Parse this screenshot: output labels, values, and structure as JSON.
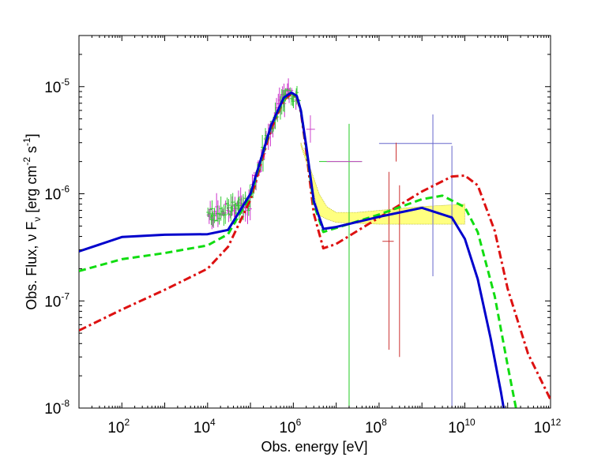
{
  "chart_data": {
    "type": "line",
    "xscale": "log",
    "yscale": "log",
    "xlabel": "Obs. energy [eV]",
    "ylabel_parts": [
      "Obs. Flux, ",
      "ν",
      " F",
      "ν",
      " [erg cm",
      "-2",
      " s",
      "-1",
      "]"
    ],
    "xlim": [
      10,
      1000000000000.0
    ],
    "ylim": [
      1e-08,
      3e-05
    ],
    "x_ticks": [
      {
        "value": 100,
        "base": "10",
        "exp": "2"
      },
      {
        "value": 10000,
        "base": "10",
        "exp": "4"
      },
      {
        "value": 1000000,
        "base": "10",
        "exp": "6"
      },
      {
        "value": 100000000,
        "base": "10",
        "exp": "8"
      },
      {
        "value": 10000000000,
        "base": "10",
        "exp": "10"
      },
      {
        "value": 1000000000000,
        "base": "10",
        "exp": "12"
      }
    ],
    "y_ticks": [
      {
        "value": 1e-08,
        "base": "10",
        "exp": "-8"
      },
      {
        "value": 1e-07,
        "base": "10",
        "exp": "-7"
      },
      {
        "value": 1e-06,
        "base": "10",
        "exp": "-6"
      },
      {
        "value": 1e-05,
        "base": "10",
        "exp": "-5"
      }
    ],
    "series": [
      {
        "name": "model-blue-solid",
        "color": "#0000cc",
        "dash": "solid",
        "x": [
          10,
          100,
          1000,
          10000,
          30000,
          100000,
          300000,
          600000,
          900000,
          1200000,
          1500000,
          2000000,
          3000000,
          5000000,
          10000000,
          100000000,
          1000000000,
          5000000000,
          10000000000,
          20000000000,
          40000000000,
          70000000000,
          100000000000
        ],
        "y": [
          2.9e-07,
          3.95e-07,
          4.15e-07,
          4.2e-07,
          4.6e-07,
          1e-06,
          4.3e-06,
          7.9e-06,
          8.8e-06,
          8.2e-06,
          6e-06,
          2.8e-06,
          8.5e-07,
          4.7e-07,
          4.9e-07,
          6.1e-07,
          7.4e-07,
          6e-07,
          3.8e-07,
          1.6e-07,
          4.5e-08,
          1.4e-08,
          6e-09
        ]
      },
      {
        "name": "model-green-dashed",
        "color": "#11dd11",
        "dash": "dashed",
        "x": [
          10,
          100,
          1000,
          10000,
          30000,
          100000,
          300000,
          600000,
          900000,
          1200000,
          1500000,
          2000000,
          3000000,
          5000000,
          10000000,
          100000000,
          1000000000,
          3000000000,
          10000000000,
          20000000000,
          50000000000,
          100000000000,
          200000000000
        ],
        "y": [
          1.9e-07,
          2.45e-07,
          2.8e-07,
          3.3e-07,
          4.2e-07,
          9.6e-07,
          4.2e-06,
          7.7e-06,
          8.7e-06,
          8.1e-06,
          6e-06,
          2.7e-06,
          8e-07,
          4.4e-07,
          4.8e-07,
          6.4e-07,
          8.9e-07,
          9.6e-07,
          7.5e-07,
          4.4e-07,
          1.1e-07,
          2.5e-08,
          6e-09
        ]
      },
      {
        "name": "model-red-dashdot",
        "color": "#dd1111",
        "dash": "dashdot",
        "x": [
          10,
          100,
          1000,
          10000,
          30000,
          100000,
          300000,
          600000,
          900000,
          1200000,
          1500000,
          2000000,
          3000000,
          5000000,
          10000000,
          100000000,
          1000000000,
          5000000000,
          10000000000,
          20000000000,
          50000000000,
          100000000000,
          300000000000,
          1000000000000
        ],
        "y": [
          5.3e-08,
          8.3e-08,
          1.27e-07,
          2e-07,
          3.2e-07,
          8.8e-07,
          4e-06,
          7.5e-06,
          8.6e-06,
          8e-06,
          5.8e-06,
          2.5e-06,
          6.5e-07,
          3.1e-07,
          3.4e-07,
          6e-07,
          1.05e-06,
          1.45e-06,
          1.48e-06,
          1.2e-06,
          4.5e-07,
          1.3e-07,
          3.2e-08,
          1.2e-08
        ]
      }
    ],
    "band": {
      "name": "uncertainty-band",
      "fill": "#ffff80",
      "x_upper": [
        1500000,
        2000000,
        3000000,
        4000000,
        6000000,
        10000000,
        30000000,
        100000000,
        1000000000,
        10000000000
      ],
      "y_upper": [
        3e-06,
        2.2e-06,
        1.4e-06,
        1e-06,
        7.6e-07,
        6.7e-07,
        6.7e-07,
        7e-07,
        7.6e-07,
        8e-07
      ],
      "x_lower": [
        10000000000,
        1000000000,
        100000000,
        30000000,
        10000000,
        6000000,
        4000000,
        3000000,
        2000000,
        1500000
      ],
      "y_lower": [
        5.2e-07,
        5.2e-07,
        5.2e-07,
        5.3e-07,
        5.4e-07,
        5.8e-07,
        6.3e-07,
        1e-06,
        2e-06,
        2.8e-06
      ]
    },
    "data_points": [
      {
        "name": "green-point",
        "color": "#22cc22",
        "x": 20000000,
        "y": 2e-06,
        "xerr": [
          4000000,
          40000000
        ],
        "yerr": [
          1e-08,
          4.5e-06
        ]
      },
      {
        "name": "magenta-point",
        "color": "#cc44cc",
        "x": 20000000,
        "y": 2e-06,
        "xerr": [
          6000000,
          40000000
        ],
        "yerr": [
          2e-06,
          2e-06
        ]
      },
      {
        "name": "magenta-point",
        "color": "#cc44cc",
        "x": 2500000,
        "y": 4e-06,
        "xerr": [
          2000000,
          3200000
        ],
        "yerr": [
          3e-06,
          5.4e-06
        ]
      },
      {
        "name": "blue-point",
        "color": "#6666cc",
        "x": 200000000,
        "y": 2.95e-06,
        "xerr": [
          100000000,
          5000000000
        ],
        "yerr": [
          2.95e-06,
          2.95e-06
        ]
      },
      {
        "name": "red-point",
        "color": "#cc3333",
        "x": 250000000,
        "y": 2.4e-06,
        "xerr": [
          250000000,
          250000000
        ],
        "yerr": [
          2e-06,
          3e-06
        ]
      },
      {
        "name": "red-point",
        "color": "#cc3333",
        "x": 170000000,
        "y": 3.6e-07,
        "xerr": [
          120000000,
          220000000
        ],
        "yerr": [
          3.5e-08,
          1.6e-06
        ]
      },
      {
        "name": "red-point",
        "color": "#cc3333",
        "x": 300000000,
        "y": 2.7e-07,
        "xerr": [
          300000000,
          300000000
        ],
        "yerr": [
          3e-08,
          1.2e-06
        ]
      },
      {
        "name": "blue-point",
        "color": "#6666cc",
        "x": 1800000000,
        "y": 6e-07,
        "xerr": [
          1800000000,
          1800000000
        ],
        "yerr": [
          1.7e-07,
          5.5e-06
        ]
      },
      {
        "name": "blue-point",
        "color": "#6666cc",
        "x": 5000000000,
        "y": 6e-07,
        "xerr": [
          5000000000,
          5000000000
        ],
        "yerr": [
          1e-08,
          2.8e-06
        ]
      }
    ],
    "spectrum_clusters": [
      {
        "name": "magenta-spectrum",
        "color": "#cc33cc",
        "x_start": 10000,
        "x_end": 1200000
      },
      {
        "name": "green-spectrum",
        "color": "#33cc33",
        "x_start": 10000,
        "x_end": 1400000
      }
    ]
  }
}
